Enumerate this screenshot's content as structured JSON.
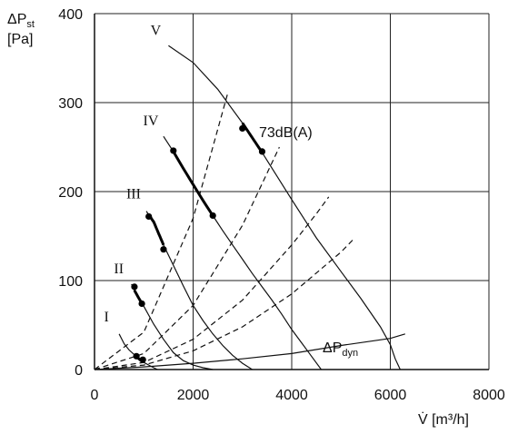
{
  "chart_data": {
    "type": "line",
    "title": "",
    "xlabel": "V̇ [m³/h]",
    "ylabel_line1": "ΔP_st",
    "ylabel_line2": "[Pa]",
    "xlim": [
      0,
      8000
    ],
    "ylim": [
      0,
      400
    ],
    "x_ticks": [
      0,
      2000,
      4000,
      6000,
      8000
    ],
    "y_ticks": [
      0,
      100,
      200,
      300,
      400
    ],
    "grid": true,
    "fan_curves": [
      {
        "name": "I",
        "points": [
          [
            500,
            40
          ],
          [
            600,
            29
          ],
          [
            700,
            22
          ],
          [
            800,
            17
          ],
          [
            900,
            12
          ],
          [
            1000,
            8
          ],
          [
            1100,
            5
          ],
          [
            1200,
            2
          ],
          [
            1280,
            0
          ]
        ]
      },
      {
        "name": "II",
        "points": [
          [
            750,
            96
          ],
          [
            800,
            90
          ],
          [
            900,
            80
          ],
          [
            1000,
            71
          ],
          [
            1200,
            51
          ],
          [
            1400,
            34
          ],
          [
            1600,
            19
          ],
          [
            1800,
            10
          ],
          [
            2000,
            5
          ],
          [
            2200,
            2
          ],
          [
            2400,
            0
          ]
        ]
      },
      {
        "name": "III",
        "points": [
          [
            1050,
            178
          ],
          [
            1200,
            166
          ],
          [
            1400,
            140
          ],
          [
            1600,
            117
          ],
          [
            1800,
            94
          ],
          [
            2000,
            72
          ],
          [
            2200,
            55
          ],
          [
            2400,
            40
          ],
          [
            2600,
            27
          ],
          [
            2800,
            16
          ],
          [
            3000,
            7
          ],
          [
            3200,
            0
          ]
        ]
      },
      {
        "name": "IV",
        "points": [
          [
            1400,
            262
          ],
          [
            1600,
            245
          ],
          [
            1800,
            226
          ],
          [
            2000,
            208
          ],
          [
            2200,
            190
          ],
          [
            2400,
            173
          ],
          [
            2600,
            156
          ],
          [
            2800,
            140
          ],
          [
            3000,
            124
          ],
          [
            3200,
            108
          ],
          [
            3400,
            93
          ],
          [
            3600,
            78
          ],
          [
            3800,
            62
          ],
          [
            4000,
            45
          ],
          [
            4200,
            30
          ],
          [
            4400,
            15
          ],
          [
            4600,
            0
          ]
        ]
      },
      {
        "name": "V",
        "points": [
          [
            1500,
            364
          ],
          [
            2000,
            345
          ],
          [
            2500,
            315
          ],
          [
            3000,
            277
          ],
          [
            3400,
            244
          ],
          [
            4000,
            191
          ],
          [
            4500,
            148
          ],
          [
            5000,
            110
          ],
          [
            5400,
            80
          ],
          [
            5800,
            48
          ],
          [
            6000,
            28
          ],
          [
            6100,
            12
          ],
          [
            6200,
            0
          ]
        ]
      }
    ],
    "system_curves": [
      {
        "points": [
          [
            0,
            0
          ],
          [
            1000,
            42
          ],
          [
            2000,
            170
          ],
          [
            2710,
            312
          ]
        ]
      },
      {
        "points": [
          [
            0,
            0
          ],
          [
            1000,
            18
          ],
          [
            2000,
            72
          ],
          [
            3000,
            162
          ],
          [
            3750,
            250
          ]
        ]
      },
      {
        "points": [
          [
            0,
            0
          ],
          [
            1000,
            8
          ],
          [
            2000,
            34
          ],
          [
            3000,
            78
          ],
          [
            4000,
            140
          ],
          [
            4500,
            175
          ],
          [
            4750,
            194
          ]
        ]
      },
      {
        "points": [
          [
            0,
            0
          ],
          [
            1000,
            5
          ],
          [
            2000,
            21
          ],
          [
            3000,
            48
          ],
          [
            4000,
            85
          ],
          [
            5000,
            132
          ],
          [
            5280,
            148
          ]
        ]
      }
    ],
    "dynamic_pressure_curve": {
      "label": "ΔP_dyn",
      "points": [
        [
          0,
          0
        ],
        [
          1000,
          3
        ],
        [
          2000,
          7
        ],
        [
          3000,
          12
        ],
        [
          4000,
          18
        ],
        [
          5000,
          27
        ],
        [
          6000,
          35
        ],
        [
          6300,
          40
        ]
      ]
    },
    "operating_points": [
      {
        "curve": "I",
        "points": [
          [
            850,
            15
          ],
          [
            980,
            11
          ]
        ]
      },
      {
        "curve": "II",
        "points": [
          [
            810,
            93
          ],
          [
            960,
            74
          ]
        ]
      },
      {
        "curve": "III",
        "points": [
          [
            1100,
            172
          ],
          [
            1400,
            135
          ]
        ]
      },
      {
        "curve": "IV",
        "points": [
          [
            1600,
            246
          ],
          [
            2400,
            173
          ]
        ]
      },
      {
        "curve": "V",
        "points": [
          [
            3000,
            271
          ],
          [
            3400,
            245
          ]
        ]
      }
    ],
    "annotations": {
      "sound_level": "73dB(A)"
    }
  }
}
